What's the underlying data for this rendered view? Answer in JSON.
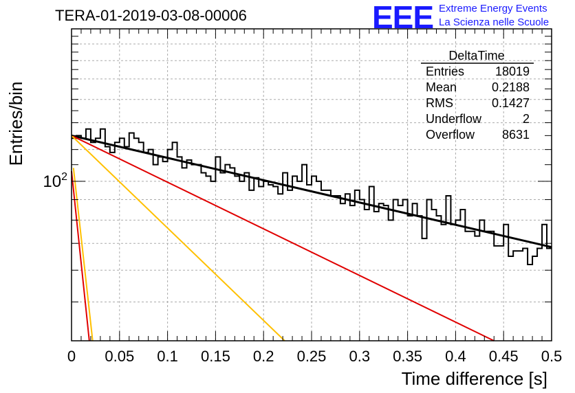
{
  "header": {
    "title": "TERA-01-2019-03-08-00006",
    "logo_text": "EEE",
    "logo_line1": "Extreme Energy Events",
    "logo_line2": "La Scienza nelle Scuole"
  },
  "stats_box": {
    "name": "DeltaTime",
    "rows": [
      {
        "label": "Entries",
        "value": "18019"
      },
      {
        "label": "Mean",
        "value": "0.2188"
      },
      {
        "label": "RMS",
        "value": "0.1427"
      },
      {
        "label": "Underflow",
        "value": "2"
      },
      {
        "label": "Overflow",
        "value": "8631"
      }
    ]
  },
  "chart_data": {
    "type": "line",
    "title": "TERA-01-2019-03-08-00006",
    "xlabel": "Time difference [s]",
    "ylabel": "Entries/bin",
    "xlim": [
      0,
      0.5
    ],
    "ylim": [
      40,
      240
    ],
    "y_scale": "log",
    "x_ticks": [
      "0",
      "0.05",
      "0.1",
      "0.15",
      "0.2",
      "0.25",
      "0.3",
      "0.35",
      "0.4",
      "0.45",
      "0.5"
    ],
    "y_tick_labels": [
      {
        "value": 100,
        "label": "10^2"
      }
    ],
    "grid": true,
    "legend": "top-right",
    "colors": {
      "histogram": "#000000",
      "fit_total": "#000000",
      "fit_red": "#e00000",
      "fit_yellow": "#ffc000",
      "logo": "#1a1aff"
    },
    "histogram": {
      "name": "DeltaTime",
      "bin_width": 0.005,
      "x_start": 0.0,
      "values": [
        128,
        130,
        128,
        135,
        125,
        128,
        135,
        122,
        118,
        125,
        128,
        122,
        132,
        128,
        125,
        118,
        120,
        110,
        115,
        112,
        120,
        125,
        115,
        108,
        113,
        110,
        110,
        105,
        103,
        100,
        115,
        105,
        110,
        108,
        103,
        100,
        105,
        95,
        102,
        97,
        100,
        98,
        97,
        93,
        105,
        95,
        103,
        100,
        110,
        98,
        103,
        100,
        95,
        95,
        92,
        92,
        88,
        93,
        87,
        95,
        90,
        85,
        97,
        84,
        88,
        87,
        80,
        90,
        87,
        90,
        82,
        88,
        82,
        72,
        90,
        85,
        82,
        78,
        92,
        78,
        80,
        85,
        75,
        75,
        73,
        80,
        75,
        75,
        69,
        69,
        78,
        65,
        67,
        67,
        68,
        62,
        65,
        68,
        78,
        68
      ]
    },
    "series": [
      {
        "name": "",
        "color": "#000000",
        "x": [
          0.0,
          0.5
        ],
        "y": [
          130,
          68.5
        ]
      },
      {
        "name": "",
        "color": "#e00000",
        "x": [
          0.0,
          0.44
        ],
        "y": [
          130,
          40
        ]
      },
      {
        "name": "",
        "color": "#ffc000",
        "x": [
          0.0,
          0.222
        ],
        "y": [
          130,
          40
        ]
      },
      {
        "name": "",
        "color": "#ffc000",
        "x": [
          0.002,
          0.022
        ],
        "y": [
          108,
          40
        ]
      },
      {
        "name": "",
        "color": "#e00000",
        "x": [
          0.0,
          0.0185
        ],
        "y": [
          106,
          40
        ]
      }
    ]
  }
}
